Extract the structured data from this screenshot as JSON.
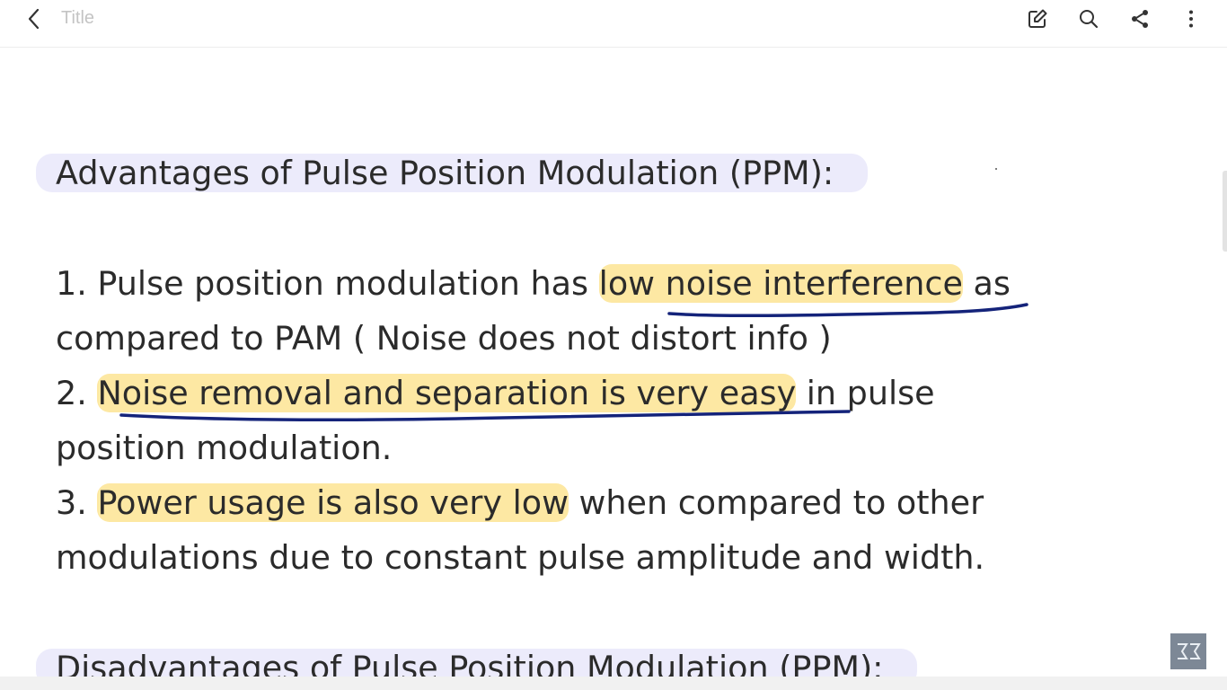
{
  "header": {
    "title": "Title",
    "back_icon": "chevron-left-icon",
    "actions": [
      {
        "name": "edit-button",
        "icon": "edit-icon"
      },
      {
        "name": "search-button",
        "icon": "search-icon"
      },
      {
        "name": "share-button",
        "icon": "share-icon"
      },
      {
        "name": "more-button",
        "icon": "more-vertical-icon"
      }
    ]
  },
  "note": {
    "heading": "Advantages of Pulse Position Modulation (PPM):",
    "points": [
      {
        "number": "1.",
        "before": " Pulse position modulation has ",
        "highlight": "low noise interference",
        "after": " as",
        "continuation": "compared to PAM ( Noise does not distort info )"
      },
      {
        "number": "2.",
        "before": " ",
        "highlight": "Noise removal and separation is very easy",
        "after": " in pulse",
        "continuation": "position modulation."
      },
      {
        "number": "3.",
        "before": " ",
        "highlight": "Power usage is also very low",
        "after": " when compared to other",
        "continuation": "modulations due to constant pulse amplitude and width."
      }
    ],
    "next_heading": "Disadvantages of Pulse Position Modulation (PPM):"
  },
  "colors": {
    "highlight_yellow": "#fde8a3",
    "heading_highlight": "#ecebfb",
    "pen_underline": "#14237a",
    "text": "#2b2b2b"
  }
}
